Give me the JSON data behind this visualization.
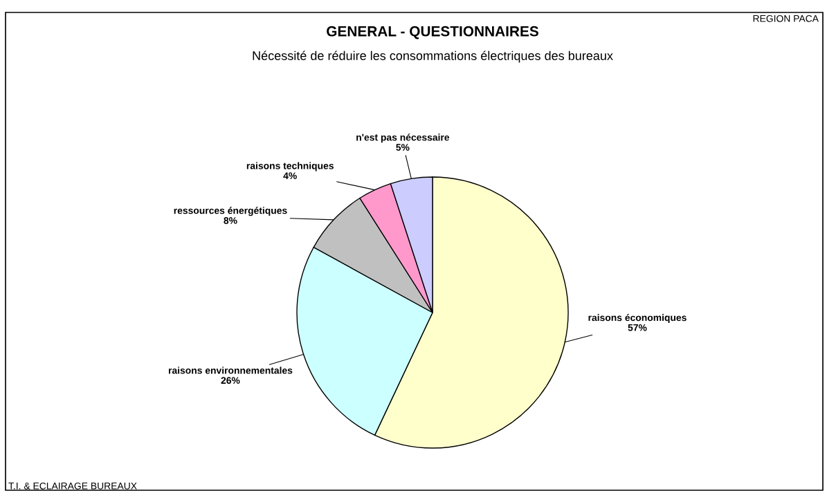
{
  "chart_data": {
    "type": "pie",
    "title": "GENERAL - QUESTIONNAIRES",
    "subtitle": "Nécessité de réduire les consommations électriques des bureaux",
    "categories": [
      "raisons économiques",
      "raisons environnementales",
      "ressources énergétiques",
      "raisons techniques",
      "n'est pas nécessaire"
    ],
    "values": [
      57,
      26,
      8,
      4,
      5
    ],
    "colors": [
      "#ffffcc",
      "#ccffff",
      "#c0c0c0",
      "#ff99cc",
      "#ccccff"
    ],
    "value_labels": [
      "57%",
      "26%",
      "8%",
      "4%",
      "5%"
    ],
    "annotations": [
      "REGION PACA",
      "T.I. & ECLAIRAGE BUREAUX"
    ]
  }
}
